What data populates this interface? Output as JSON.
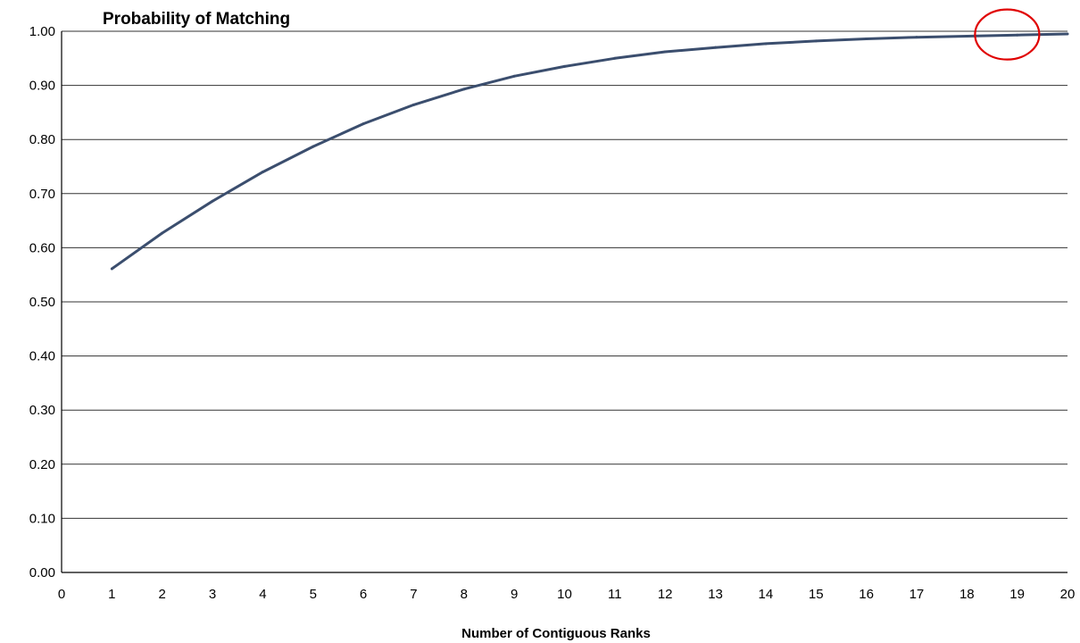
{
  "chart_data": {
    "type": "line",
    "title": "Probability of Matching",
    "xlabel": "Number of Contiguous Ranks",
    "ylabel": "",
    "xlim": [
      0,
      20
    ],
    "ylim": [
      0.0,
      1.0
    ],
    "x_ticks": [
      "0",
      "1",
      "2",
      "3",
      "4",
      "5",
      "6",
      "7",
      "8",
      "9",
      "10",
      "11",
      "12",
      "13",
      "14",
      "15",
      "16",
      "17",
      "18",
      "19",
      "20"
    ],
    "y_ticks": [
      "0.00",
      "0.10",
      "0.20",
      "0.30",
      "0.40",
      "0.50",
      "0.60",
      "0.70",
      "0.80",
      "0.90",
      "1.00"
    ],
    "grid": true,
    "series": [
      {
        "color": "#3b4e6e",
        "x": [
          1,
          2,
          3,
          4,
          5,
          6,
          7,
          8,
          9,
          10,
          11,
          12,
          13,
          14,
          15,
          16,
          17,
          18,
          19,
          20
        ],
        "y": [
          0.561,
          0.627,
          0.686,
          0.74,
          0.787,
          0.829,
          0.864,
          0.893,
          0.917,
          0.935,
          0.95,
          0.962,
          0.97,
          0.977,
          0.982,
          0.986,
          0.989,
          0.991,
          0.993,
          0.995
        ]
      }
    ],
    "annotations": [
      {
        "shape": "ellipse",
        "color": "#e00000",
        "x": 18.8,
        "y": 0.994
      }
    ]
  }
}
